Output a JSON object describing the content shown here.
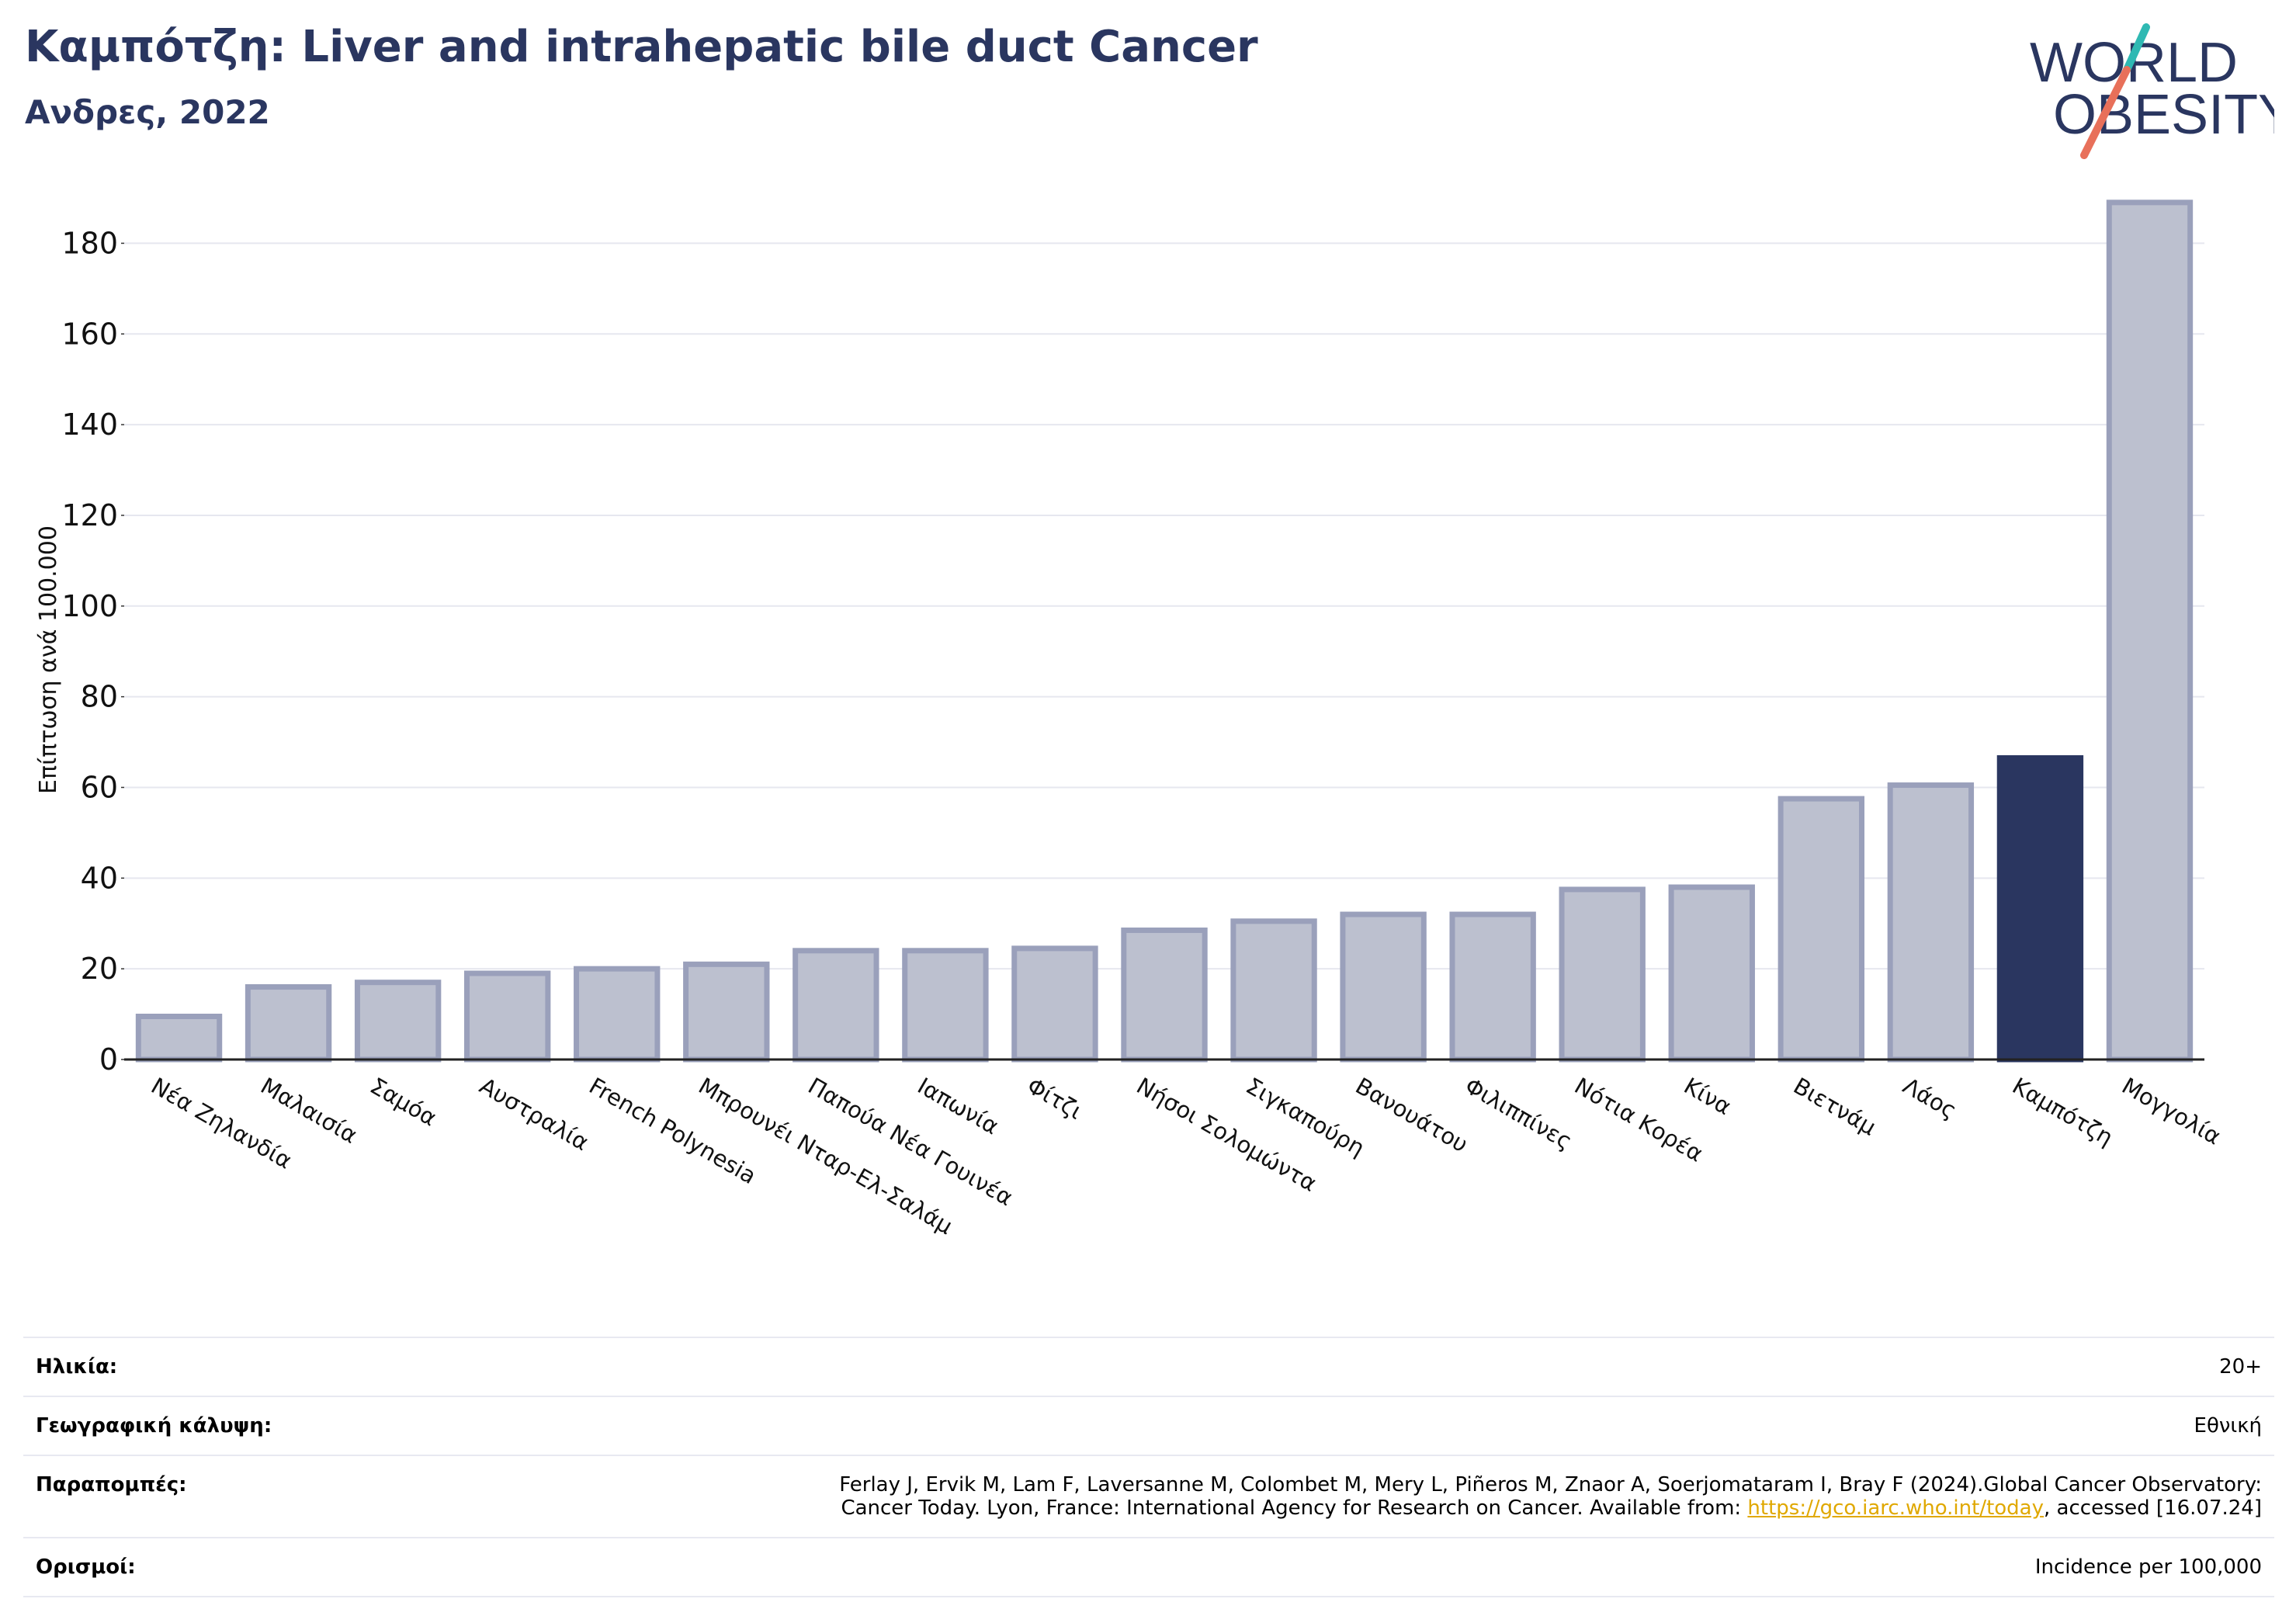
{
  "header": {
    "title": "Καμπότζη: Liver and intrahepatic bile duct Cancer",
    "subtitle": "Ανδρες, 2022"
  },
  "logo": {
    "line1": "WORLD",
    "line2": "OBESITY"
  },
  "colors": {
    "highlight": "#2a3660",
    "bar_fill": "#bcc0cf",
    "bar_stroke": "#9aa0bb",
    "grid": "#e6e7ef",
    "logo_teal": "#2fb9b3",
    "logo_coral": "#e8705a"
  },
  "chart_data": {
    "type": "bar",
    "title": "",
    "xlabel": "",
    "ylabel": "Επίπτωση ανά 100.000",
    "ylim": [
      0,
      190
    ],
    "yticks": [
      0,
      20,
      40,
      60,
      80,
      100,
      120,
      140,
      160,
      180
    ],
    "grid": true,
    "highlight_category": "Καμπότζη",
    "categories": [
      "Νέα Ζηλανδία",
      "Μαλαισία",
      "Σαμόα",
      "Αυστραλία",
      "French Polynesia",
      "Μπρουνέι Νταρ-Ελ-Σαλάμ",
      "Παπούα Νέα Γουινέα",
      "Ιαπωνία",
      "Φίτζι",
      "Νήσοι Σολομώντα",
      "Σιγκαπούρη",
      "Βανουάτου",
      "Φιλιππίνες",
      "Νότια Κορέα",
      "Κίνα",
      "Βιετνάμ",
      "Λάος",
      "Καμπότζη",
      "Μογγολία"
    ],
    "values": [
      9.5,
      16,
      17,
      19,
      20,
      21,
      24,
      24,
      24.5,
      28.5,
      30.5,
      32,
      32,
      37.5,
      38,
      57.5,
      60.5,
      66.5,
      189
    ]
  },
  "footer": {
    "rows": [
      {
        "label": "Ηλικία:",
        "value": "20+"
      },
      {
        "label": "Γεωγραφική κάλυψη:",
        "value": "Εθνική"
      },
      {
        "label": "Παραπομπές:",
        "value_line1": "Ferlay J, Ervik M, Lam F, Laversanne M, Colombet M, Mery L, Piñeros M, Znaor A, Soerjomataram I, Bray F (2024).Global Cancer Observatory:",
        "value_line2_pre": "Cancer Today. Lyon, France: International Agency for Research on Cancer. Available from: ",
        "link": "https://gco.iarc.who.int/today",
        "value_line2_post": ", accessed [16.07.24]"
      },
      {
        "label": "Ορισμοί:",
        "value": "Incidence per 100,000"
      }
    ]
  }
}
